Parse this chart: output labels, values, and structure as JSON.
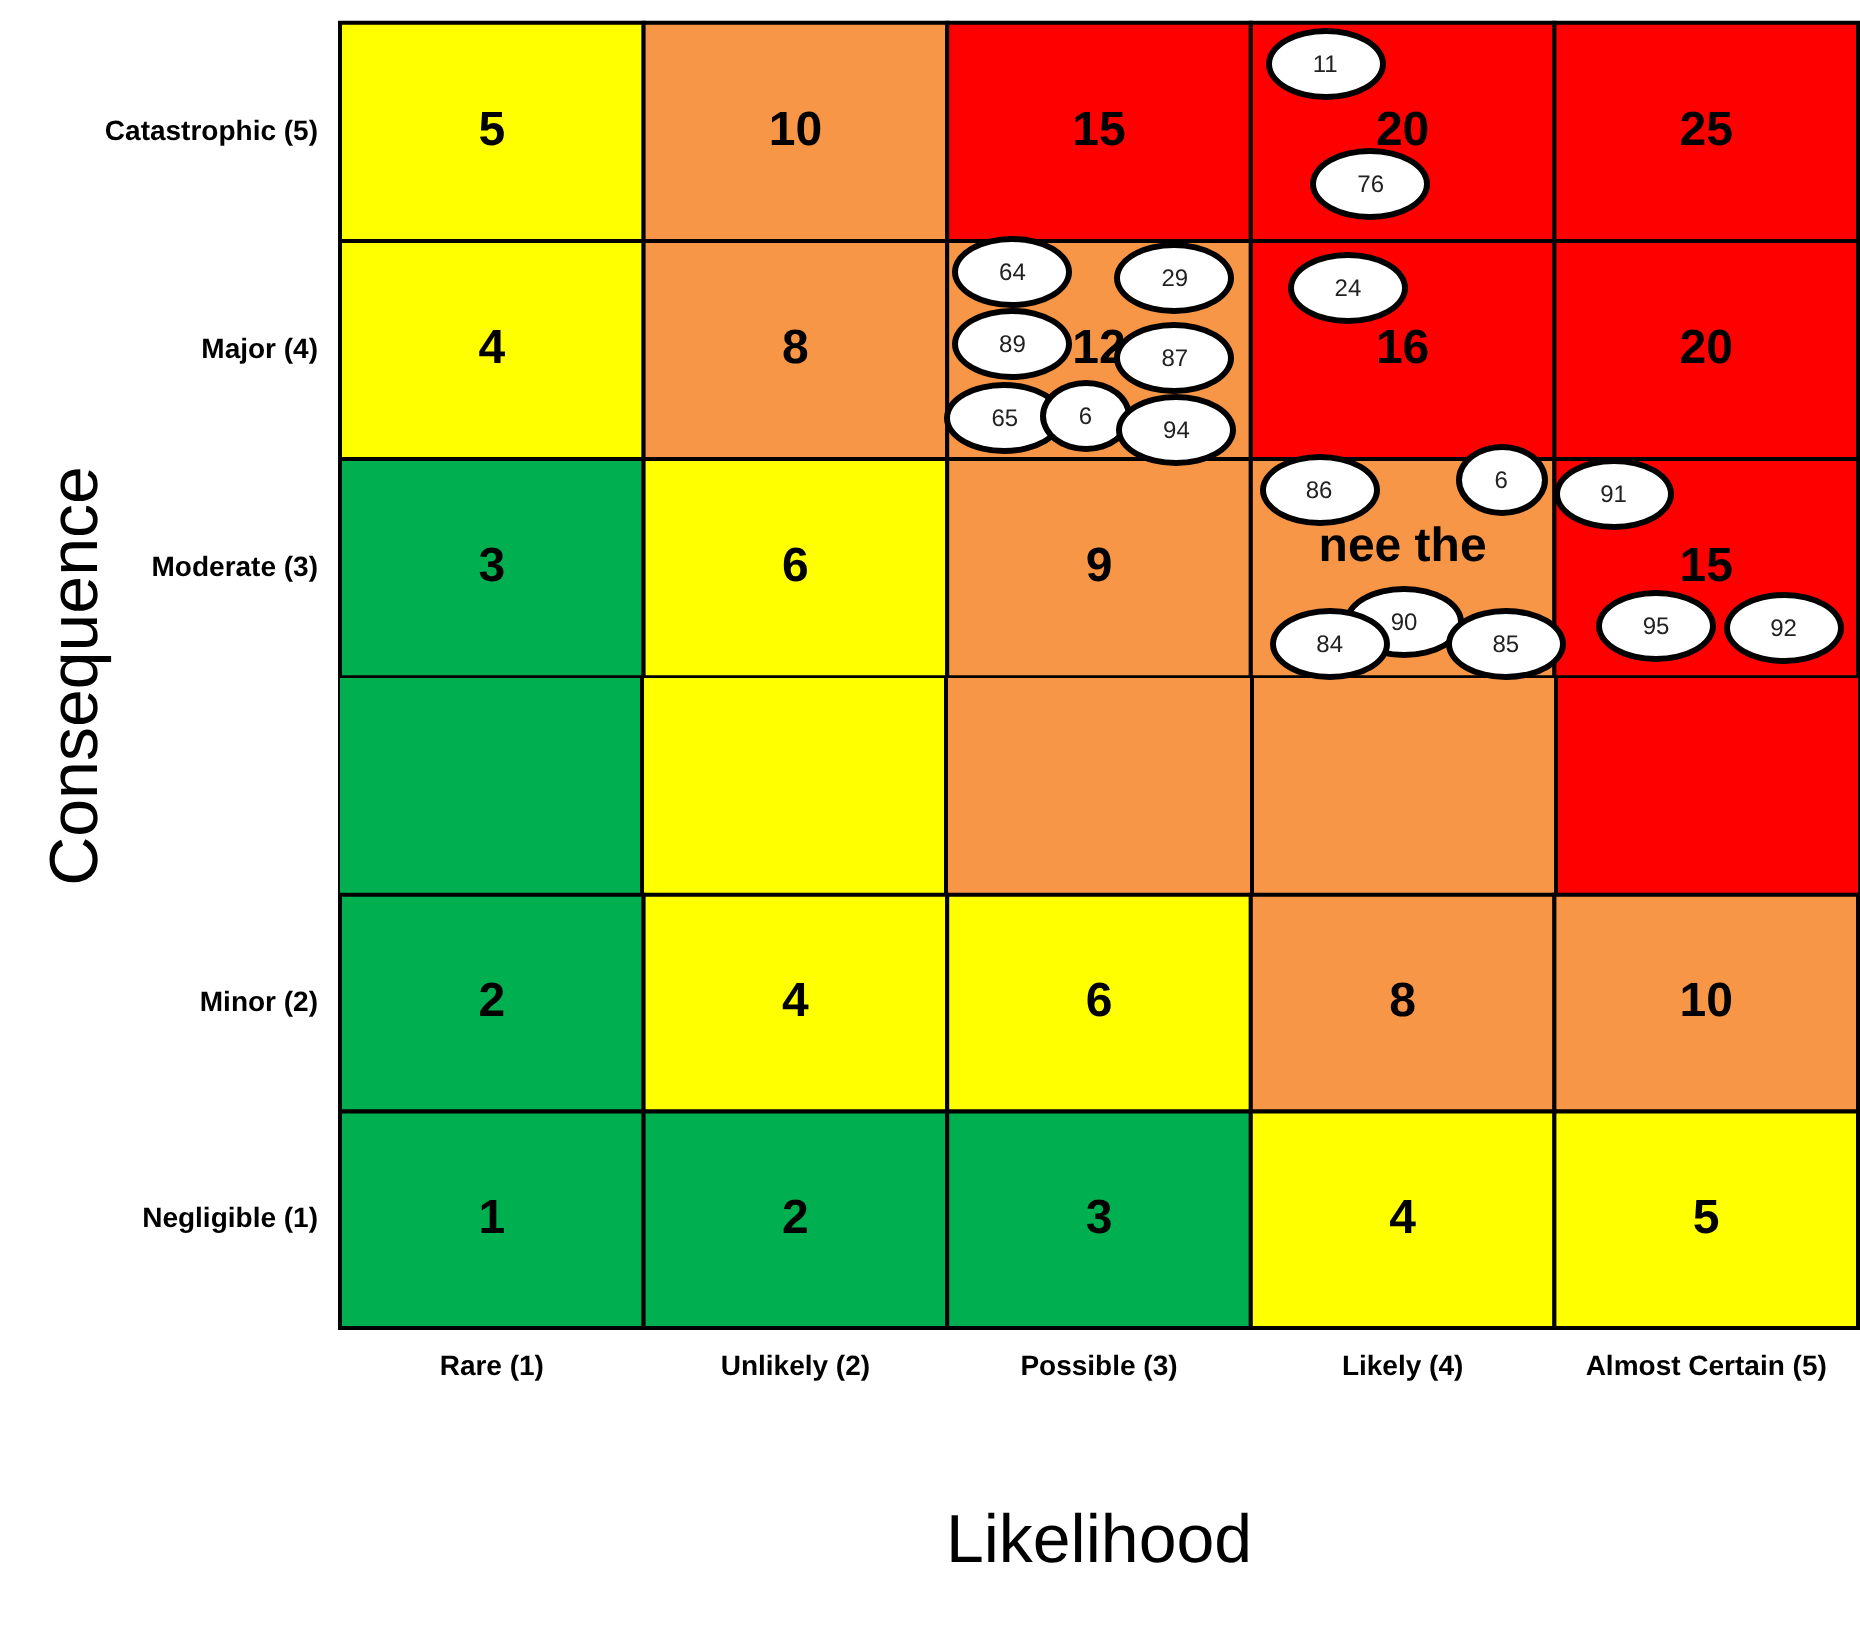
{
  "chart_data": [
    {
      "type": "heatmap",
      "ylabel": "Consequence",
      "categories": [
        null,
        null,
        null,
        null,
        null
      ],
      "y_categories": [
        "Catastrophic (5)",
        "Major (4)",
        "Moderate (3)"
      ],
      "cells": [
        [
          5,
          10,
          15,
          20,
          25
        ],
        [
          4,
          8,
          12,
          16,
          20
        ],
        [
          3,
          6,
          9,
          null,
          15
        ]
      ],
      "cell_labels": [
        [
          "5",
          "10",
          "15",
          "20",
          "25"
        ],
        [
          "4",
          "8",
          "12",
          "16",
          "20"
        ],
        [
          "3",
          "6",
          "9",
          "nee the",
          "15"
        ]
      ],
      "colors": [
        [
          "#ffff00",
          "#f79646",
          "#ff0000",
          "#ff0000",
          "#ff0000"
        ],
        [
          "#ffff00",
          "#f79646",
          "#f79646",
          "#ff0000",
          "#ff0000"
        ],
        [
          "#00b050",
          "#ffff00",
          "#f79646",
          "#f79646",
          "#ff0000"
        ]
      ],
      "data_labels": true,
      "tick_labels": "y",
      "annotations": [
        "11",
        "76",
        "64",
        "29",
        "89",
        "87",
        "65",
        "6",
        "94",
        "24",
        "86",
        "6",
        "90",
        "84",
        "85",
        "91",
        "95",
        "92"
      ]
    },
    {
      "type": "heatmap",
      "xlabel": "Likelihood",
      "categories": [
        "Rare (1)",
        "Unlikely (2)",
        "Possible (3)",
        "Likely (4)",
        "Almost Certain (5)"
      ],
      "y_categories": [
        "Minor (2)",
        "Negligible (1)"
      ],
      "cells": [
        [
          2,
          4,
          6,
          8,
          10
        ],
        [
          1,
          2,
          3,
          4,
          5
        ]
      ],
      "colors": [
        [
          "#00b050",
          "#ffff00",
          "#ffff00",
          "#f79646",
          "#f79646"
        ],
        [
          "#00b050",
          "#00b050",
          "#00b050",
          "#ffff00",
          "#ffff00"
        ]
      ],
      "data_labels": true
    }
  ]
}
